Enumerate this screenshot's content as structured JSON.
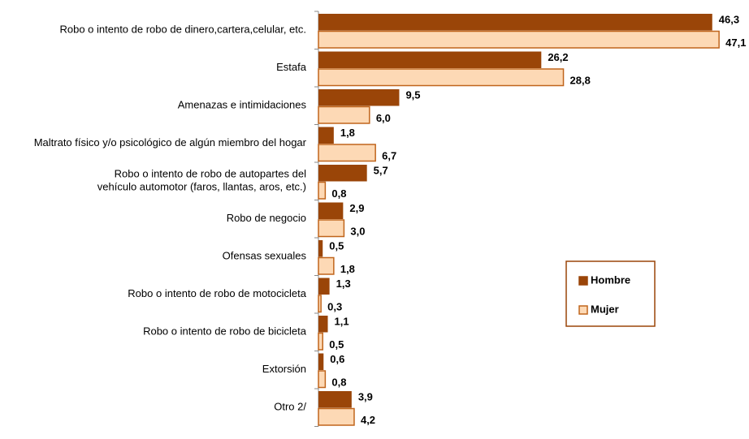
{
  "chart_data": {
    "type": "bar",
    "orientation": "horizontal",
    "categories": [
      "Robo o intento de robo de dinero,cartera,celular, etc.",
      "Estafa",
      "Amenazas e intimidaciones",
      "Maltrato físico y/o psicológico de algún miembro del hogar",
      "Robo o intento de robo de autopartes del\nvehículo automotor (faros, llantas, aros, etc.)",
      "Robo de negocio",
      "Ofensas sexuales",
      "Robo o intento de robo de motocicleta",
      "Robo o intento de robo de bicicleta",
      "Extorsión",
      "Otro 2/"
    ],
    "series": [
      {
        "name": "Hombre",
        "color": "#9a4508",
        "values": [
          46.3,
          26.2,
          9.5,
          1.8,
          5.7,
          2.9,
          0.5,
          1.3,
          1.1,
          0.6,
          3.9
        ],
        "value_labels": [
          "46,3",
          "26,2",
          "9,5",
          "1,8",
          "5,7",
          "2,9",
          "0,5",
          "1,3",
          "1,1",
          "0,6",
          "3,9"
        ]
      },
      {
        "name": "Mujer",
        "color": "#fdd9b5",
        "values": [
          47.1,
          28.8,
          6.0,
          6.7,
          0.8,
          3.0,
          1.8,
          0.3,
          0.5,
          0.8,
          4.2
        ],
        "value_labels": [
          "47,1",
          "28,8",
          "6,0",
          "6,7",
          "0,8",
          "3,0",
          "1,8",
          "0,3",
          "0,5",
          "0,8",
          "4,2"
        ]
      }
    ],
    "legend": "right"
  }
}
